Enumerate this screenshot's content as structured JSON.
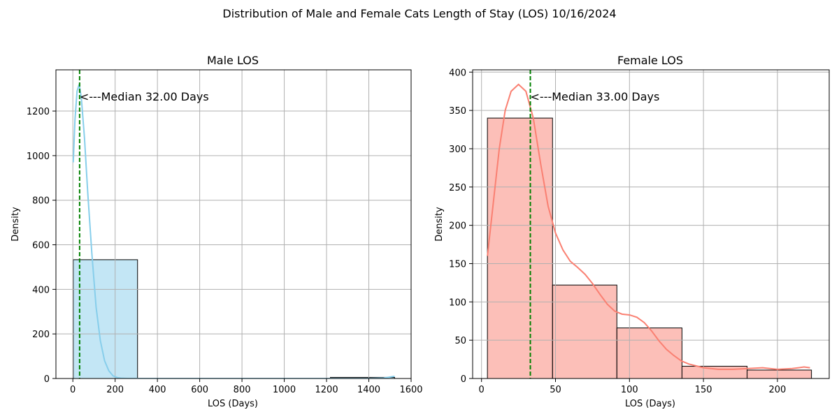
{
  "suptitle": "Distribution of Male and Female Cats Length of Stay (LOS) 10/16/2024",
  "chart_data": [
    {
      "type": "bar",
      "title": "Male LOS",
      "xlabel": "LOS (Days)",
      "ylabel": "Density",
      "xlim": [
        -80,
        1600
      ],
      "ylim": [
        0,
        1385
      ],
      "xticks": [
        0,
        200,
        400,
        600,
        800,
        1000,
        1200,
        1400,
        1600
      ],
      "yticks": [
        0,
        200,
        400,
        600,
        800,
        1000,
        1200
      ],
      "grid": true,
      "bars": [
        {
          "x0": 2,
          "x1": 306,
          "value": 533
        },
        {
          "x0": 306,
          "x1": 610,
          "value": 0
        },
        {
          "x0": 610,
          "x1": 914,
          "value": 0
        },
        {
          "x0": 914,
          "x1": 1218,
          "value": 0
        },
        {
          "x0": 1218,
          "x1": 1522,
          "value": 5
        }
      ],
      "kde": [
        [
          2,
          970
        ],
        [
          10,
          1160
        ],
        [
          20,
          1290
        ],
        [
          30,
          1320
        ],
        [
          40,
          1260
        ],
        [
          55,
          1080
        ],
        [
          70,
          840
        ],
        [
          90,
          560
        ],
        [
          110,
          320
        ],
        [
          130,
          170
        ],
        [
          150,
          80
        ],
        [
          170,
          35
        ],
        [
          190,
          12
        ],
        [
          210,
          4
        ],
        [
          230,
          1
        ],
        [
          260,
          0
        ],
        [
          400,
          0
        ],
        [
          800,
          0
        ],
        [
          1200,
          0
        ],
        [
          1400,
          0
        ],
        [
          1470,
          2
        ],
        [
          1522,
          10
        ]
      ],
      "median": 32,
      "median_label": "<---Median 32.00 Days",
      "bar_color": "#87ceeb",
      "line_color": "#87ceeb",
      "median_color": "#008000"
    },
    {
      "type": "bar",
      "title": "Female LOS",
      "xlabel": "LOS (Days)",
      "ylabel": "Density",
      "xlim": [
        -6,
        235
      ],
      "ylim": [
        0,
        403
      ],
      "xticks": [
        0,
        50,
        100,
        150,
        200
      ],
      "yticks": [
        0,
        50,
        100,
        150,
        200,
        250,
        300,
        350,
        400
      ],
      "grid": true,
      "bars": [
        {
          "x0": 4,
          "x1": 48,
          "value": 340
        },
        {
          "x0": 48,
          "x1": 91.5,
          "value": 122
        },
        {
          "x0": 91.5,
          "x1": 135.5,
          "value": 66
        },
        {
          "x0": 135.5,
          "x1": 179.5,
          "value": 16
        },
        {
          "x0": 179.5,
          "x1": 223,
          "value": 11
        }
      ],
      "kde": [
        [
          4,
          160
        ],
        [
          8,
          230
        ],
        [
          12,
          300
        ],
        [
          16,
          350
        ],
        [
          20,
          375
        ],
        [
          25,
          384
        ],
        [
          30,
          375
        ],
        [
          35,
          340
        ],
        [
          40,
          280
        ],
        [
          45,
          225
        ],
        [
          50,
          190
        ],
        [
          55,
          168
        ],
        [
          60,
          153
        ],
        [
          65,
          145
        ],
        [
          70,
          136
        ],
        [
          75,
          124
        ],
        [
          80,
          110
        ],
        [
          85,
          97
        ],
        [
          90,
          88
        ],
        [
          95,
          84
        ],
        [
          100,
          83
        ],
        [
          105,
          80
        ],
        [
          110,
          73
        ],
        [
          115,
          62
        ],
        [
          120,
          49
        ],
        [
          125,
          38
        ],
        [
          130,
          30
        ],
        [
          135,
          23
        ],
        [
          140,
          19
        ],
        [
          150,
          14
        ],
        [
          160,
          12
        ],
        [
          170,
          12
        ],
        [
          180,
          13
        ],
        [
          190,
          14
        ],
        [
          200,
          12
        ],
        [
          210,
          13
        ],
        [
          218,
          15
        ],
        [
          222,
          14
        ]
      ],
      "median": 33,
      "median_label": "<---Median 33.00 Days",
      "bar_color": "#fa8072",
      "line_color": "#fa8072",
      "median_color": "#008000"
    }
  ]
}
